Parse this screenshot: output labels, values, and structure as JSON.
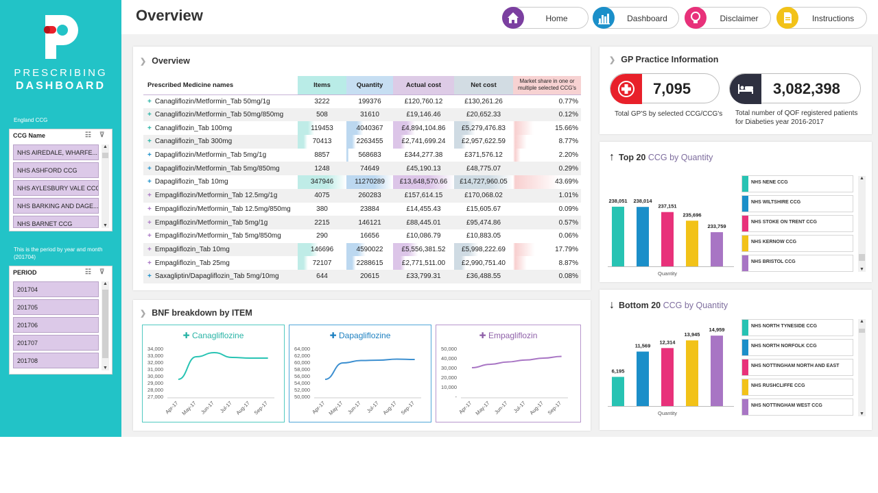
{
  "header": {
    "title": "Overview"
  },
  "nav": [
    {
      "label": "Home",
      "icon": "home-icon",
      "color": "#7b3fa0"
    },
    {
      "label": "Dashboard",
      "icon": "bar-chart-icon",
      "color": "#1b8fc9"
    },
    {
      "label": "Disclaimer",
      "icon": "lightbulb-icon",
      "color": "#e8317a"
    },
    {
      "label": "Instructions",
      "icon": "document-icon",
      "color": "#f2c218"
    }
  ],
  "sidebar": {
    "brand_line1": "PRESCRIBING",
    "brand_line2": "DASHBOARD",
    "ccg_caption": "England CCG",
    "ccg_slicer": {
      "title": "CCG Name",
      "items": [
        "NHS AIREDALE, WHARFE...",
        "NHS ASHFORD CCG",
        "NHS AYLESBURY VALE CCG",
        "NHS BARKING AND DAGE...",
        "NHS BARNET CCG"
      ]
    },
    "period_caption_a": "This is the period by year and month",
    "period_caption_b": "(201704)",
    "period_slicer": {
      "title": "PERIOD",
      "items": [
        "201704",
        "201705",
        "201706",
        "201707",
        "201708"
      ]
    }
  },
  "overview": {
    "title": "Overview",
    "columns": [
      "Prescribed Medicine names",
      "Items",
      "Quantity",
      "Actual cost",
      "Net cost",
      "Market share in one or multiple selected CCG's"
    ],
    "rows": [
      {
        "name": "Canagliflozin/Metformin_Tab 50mg/1g",
        "items": "3222",
        "quantity": "199376",
        "actual": "£120,760.12",
        "net": "£130,261.26",
        "share": "0.77%",
        "group": "cana"
      },
      {
        "name": "Canagliflozin/Metformin_Tab 50mg/850mg",
        "items": "508",
        "quantity": "31610",
        "actual": "£19,146.46",
        "net": "£20,652.33",
        "share": "0.12%",
        "group": "cana"
      },
      {
        "name": "Canagliflozin_Tab 100mg",
        "items": "119453",
        "quantity": "4040367",
        "actual": "£4,894,104.86",
        "net": "£5,279,476.83",
        "share": "15.66%",
        "group": "cana"
      },
      {
        "name": "Canagliflozin_Tab 300mg",
        "items": "70413",
        "quantity": "2263455",
        "actual": "£2,741,699.24",
        "net": "£2,957,622.59",
        "share": "8.77%",
        "group": "cana"
      },
      {
        "name": "Dapagliflozin/Metformin_Tab 5mg/1g",
        "items": "8857",
        "quantity": "568683",
        "actual": "£344,277.38",
        "net": "£371,576.12",
        "share": "2.20%",
        "group": "dapa"
      },
      {
        "name": "Dapagliflozin/Metformin_Tab 5mg/850mg",
        "items": "1248",
        "quantity": "74649",
        "actual": "£45,190.13",
        "net": "£48,775.07",
        "share": "0.29%",
        "group": "dapa"
      },
      {
        "name": "Dapagliflozin_Tab 10mg",
        "items": "347946",
        "quantity": "11270289",
        "actual": "£13,648,570.66",
        "net": "£14,727,960.05",
        "share": "43.69%",
        "group": "dapa"
      },
      {
        "name": "Empagliflozin/Metformin_Tab 12.5mg/1g",
        "items": "4075",
        "quantity": "260283",
        "actual": "£157,614.15",
        "net": "£170,068.02",
        "share": "1.01%",
        "group": "empa"
      },
      {
        "name": "Empagliflozin/Metformin_Tab 12.5mg/850mg",
        "items": "380",
        "quantity": "23884",
        "actual": "£14,455.43",
        "net": "£15,605.67",
        "share": "0.09%",
        "group": "empa"
      },
      {
        "name": "Empagliflozin/Metformin_Tab 5mg/1g",
        "items": "2215",
        "quantity": "146121",
        "actual": "£88,445.01",
        "net": "£95,474.86",
        "share": "0.57%",
        "group": "empa"
      },
      {
        "name": "Empagliflozin/Metformin_Tab 5mg/850mg",
        "items": "290",
        "quantity": "16656",
        "actual": "£10,086.79",
        "net": "£10,883.05",
        "share": "0.06%",
        "group": "empa"
      },
      {
        "name": "Empagliflozin_Tab 10mg",
        "items": "146696",
        "quantity": "4590022",
        "actual": "£5,556,381.52",
        "net": "£5,998,222.69",
        "share": "17.79%",
        "group": "empa"
      },
      {
        "name": "Empagliflozin_Tab 25mg",
        "items": "72107",
        "quantity": "2288615",
        "actual": "£2,771,511.00",
        "net": "£2,990,751.40",
        "share": "8.87%",
        "group": "empa"
      },
      {
        "name": "Saxagliptin/Dapagliflozin_Tab 5mg/10mg",
        "items": "644",
        "quantity": "20615",
        "actual": "£33,799.31",
        "net": "£36,488.55",
        "share": "0.08%",
        "group": "dapa"
      }
    ]
  },
  "gp_info": {
    "title": "GP Practice Information",
    "gp_value": "7,095",
    "gp_desc": "Total GP'S by selected CCG/CCG's",
    "patients_value": "3,082,398",
    "patients_desc_1": "Total number of QOF registered patients",
    "patients_desc_2": "for Diabeties year 2016-2017"
  },
  "top20": {
    "title_bold": "Top 20",
    "title_rest": "CCG by Quantity",
    "axis_label": "Quantity",
    "legend": [
      "NHS NENE CCG",
      "NHS WILTSHIRE CCG",
      "NHS STOKE ON TRENT CCG",
      "NHS KERNOW CCG",
      "NHS BRISTOL CCG"
    ]
  },
  "bottom20": {
    "title_bold": "Bottom 20",
    "title_rest": "CCG by Quantity",
    "axis_label": "Quantity",
    "legend": [
      "NHS NORTH TYNESIDE CCG",
      "NHS NORTH NORFOLK CCG",
      "NHS NOTTINGHAM NORTH AND EAST",
      "NHS RUSHCLIFFE CCG",
      "NHS NOTTINGHAM WEST CCG"
    ]
  },
  "bnf": {
    "title": "BNF breakdown by ITEM"
  },
  "colors": {
    "teal": "#27c3b3",
    "blue": "#1b8fc9",
    "pink": "#e8317a",
    "yellow": "#f2c218",
    "purple": "#a875c4"
  },
  "chart_data": [
    {
      "type": "bar",
      "title": "Top 20 CCG by Quantity",
      "xlabel": "Quantity",
      "categories": [
        "NHS NENE CCG",
        "NHS WILTSHIRE CCG",
        "NHS STOKE ON TRENT CCG",
        "NHS KERNOW CCG",
        "NHS BRISTOL CCG"
      ],
      "values": [
        238051,
        238014,
        237151,
        235696,
        233759
      ],
      "labels": [
        "238,051",
        "238,014",
        "237,151",
        "235,696",
        "233,759"
      ],
      "ylim": [
        228000,
        240000
      ]
    },
    {
      "type": "bar",
      "title": "Bottom 20 CCG by Quantity",
      "xlabel": "Quantity",
      "categories": [
        "NHS NORTH TYNESIDE CCG",
        "NHS NORTH NORFOLK CCG",
        "NHS NOTTINGHAM NORTH AND EAST",
        "NHS RUSHCLIFFE CCG",
        "NHS NOTTINGHAM WEST CCG"
      ],
      "values": [
        6195,
        11569,
        12314,
        13945,
        14959
      ],
      "labels": [
        "6,195",
        "11,569",
        "12,314",
        "13,945",
        "14,959"
      ],
      "ylim": [
        0,
        16000
      ]
    },
    {
      "type": "line",
      "title": "Canagliflozine",
      "x": [
        "Apr-17",
        "May-17",
        "Jun-17",
        "Jul-17",
        "Aug-17",
        "Sep-17"
      ],
      "values": [
        29500,
        32800,
        33400,
        32700,
        32600,
        32600
      ],
      "yticks": [
        "34,000",
        "33,000",
        "32,000",
        "31,000",
        "30,000",
        "29,000",
        "28,000",
        "27,000"
      ],
      "ylim": [
        27000,
        34000
      ]
    },
    {
      "type": "line",
      "title": "Dapagliflozine",
      "x": [
        "Apr-17",
        "May-17",
        "Jun-17",
        "Jul-17",
        "Aug-17",
        "Sep-17"
      ],
      "values": [
        55000,
        59800,
        60500,
        60600,
        60900,
        60800
      ],
      "yticks": [
        "64,000",
        "62,000",
        "60,000",
        "58,000",
        "56,000",
        "54,000",
        "52,000",
        "50,000"
      ],
      "ylim": [
        50000,
        64000
      ]
    },
    {
      "type": "line",
      "title": "Empagliflozin",
      "x": [
        "Apr-17",
        "May-17",
        "Jun-17",
        "Jul-17",
        "Aug-17",
        "Sep-17"
      ],
      "values": [
        30000,
        33500,
        36000,
        38000,
        40000,
        41800
      ],
      "yticks": [
        "50,000",
        "40,000",
        "30,000",
        "20,000",
        "10,000",
        "-"
      ],
      "ylim": [
        0,
        50000
      ]
    }
  ]
}
